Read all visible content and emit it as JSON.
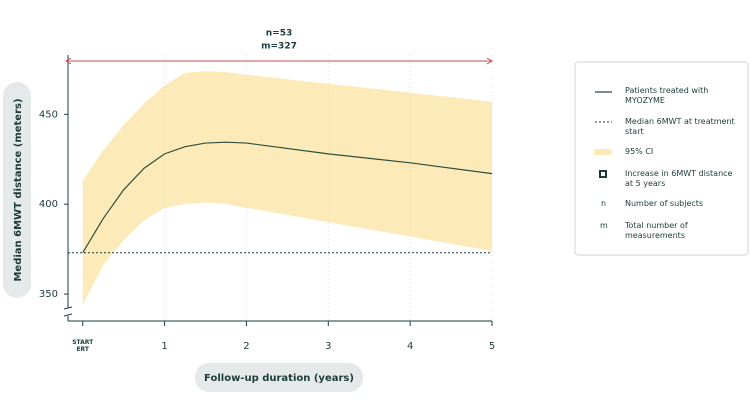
{
  "chart_data": {
    "type": "line",
    "x": [
      0,
      0.25,
      0.5,
      0.75,
      1,
      1.25,
      1.5,
      1.75,
      2,
      3,
      4,
      5
    ],
    "series": [
      {
        "name": "Patients treated with MYOZYME",
        "color": "#2f4f3e",
        "values": [
          373,
          392,
          408,
          420,
          428,
          432,
          434,
          434.5,
          434,
          428,
          423,
          417
        ]
      }
    ],
    "ci": {
      "name": "95% CI",
      "color": "#fdeab9",
      "upper": [
        413,
        430,
        444,
        456,
        466,
        473,
        474,
        473.5,
        472,
        467,
        462,
        457
      ],
      "lower": [
        344,
        366,
        380,
        391,
        398,
        400,
        401,
        400,
        398,
        390,
        382,
        374
      ]
    },
    "baseline": {
      "name": "Median 6MWT at treatment start",
      "value": 373
    },
    "xlabel": "Follow-up duration (years)",
    "ylabel": "Median 6MWT distance (meters)",
    "xlim": [
      -0.18,
      5
    ],
    "ylim": [
      335,
      483
    ],
    "xticks": [
      {
        "value": 0,
        "label": "START ERT"
      },
      1,
      2,
      3,
      4,
      5
    ],
    "yticks": [
      350,
      400,
      450
    ],
    "annotations": [
      "n=53",
      "m=327"
    ],
    "legend_extra": [
      {
        "symbol": "",
        "text": "Increase in 6MWT distance at 5 years"
      },
      {
        "symbol": "n",
        "text": "Number of subjects"
      },
      {
        "symbol": "m",
        "text": "Total number of measurements"
      }
    ]
  }
}
